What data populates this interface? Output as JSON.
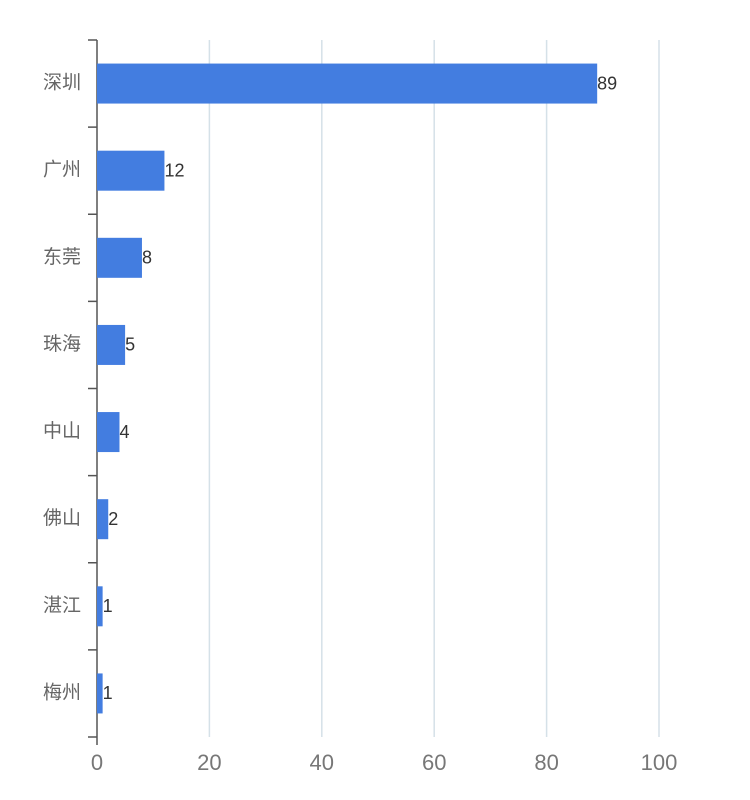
{
  "chart_data": {
    "type": "hbar",
    "categories": [
      "深圳",
      "广州",
      "东莞",
      "珠海",
      "中山",
      "佛山",
      "湛江",
      "梅州"
    ],
    "values": [
      89,
      12,
      8,
      5,
      4,
      2,
      1,
      1
    ],
    "color": "#437de0",
    "xlim": [
      0,
      100
    ],
    "xticks": [
      0,
      20,
      40,
      60,
      80,
      100
    ],
    "grid": true
  }
}
